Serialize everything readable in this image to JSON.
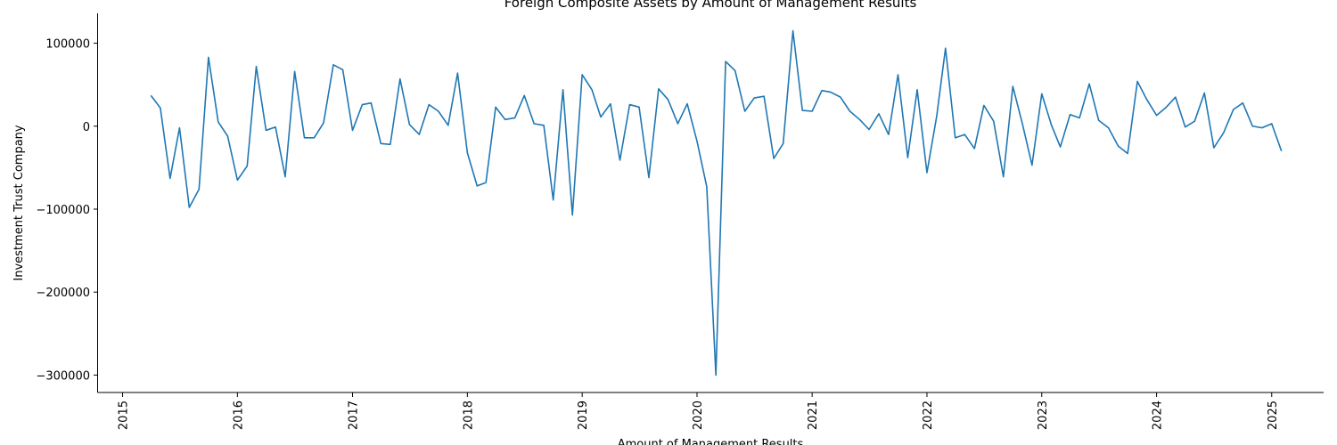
{
  "chart_data": {
    "type": "line",
    "title": "Foreign Composite Assets by Amount of Management Results",
    "xlabel": "Amount of Management Results",
    "ylabel": "Investment Trust Company",
    "x_tick_labels": [
      "2015",
      "2016",
      "2017",
      "2018",
      "2019",
      "2020",
      "2021",
      "2022",
      "2023",
      "2024",
      "2025"
    ],
    "y_tick_labels": [
      "100000",
      "0",
      "−100000",
      "−200000",
      "−300000"
    ],
    "y_ticks": [
      100000,
      0,
      -100000,
      -200000,
      -300000
    ],
    "xlim": [
      "2014-10-15",
      "2025-06-15"
    ],
    "ylim": [
      -321000,
      136000
    ],
    "grid": false,
    "line_color": "#1f77b4",
    "series": [
      {
        "x": [
          "2015-04-01",
          "2015-05-01",
          "2015-06-01",
          "2015-07-01",
          "2015-08-01",
          "2015-09-01",
          "2015-10-01",
          "2015-11-01",
          "2015-12-01",
          "2016-01-01",
          "2016-02-01",
          "2016-03-01",
          "2016-04-01",
          "2016-05-01",
          "2016-06-01",
          "2016-07-01",
          "2016-08-01",
          "2016-09-01",
          "2016-10-01",
          "2016-11-01",
          "2016-12-01",
          "2017-01-01",
          "2017-02-01",
          "2017-03-01",
          "2017-04-01",
          "2017-05-01",
          "2017-06-01",
          "2017-07-01",
          "2017-08-01",
          "2017-09-01",
          "2017-10-01",
          "2017-11-01",
          "2017-12-01",
          "2018-01-01",
          "2018-02-01",
          "2018-03-01",
          "2018-04-01",
          "2018-05-01",
          "2018-06-01",
          "2018-07-01",
          "2018-08-01",
          "2018-09-01",
          "2018-10-01",
          "2018-11-01",
          "2018-12-01",
          "2019-01-01",
          "2019-02-01",
          "2019-03-01",
          "2019-04-01",
          "2019-05-01",
          "2019-06-01",
          "2019-07-01",
          "2019-08-01",
          "2019-09-01",
          "2019-10-01",
          "2019-11-01",
          "2019-12-01",
          "2020-01-01",
          "2020-02-01",
          "2020-03-01",
          "2020-04-01",
          "2020-05-01",
          "2020-06-01",
          "2020-07-01",
          "2020-08-01",
          "2020-09-01",
          "2020-10-01",
          "2020-11-01",
          "2020-12-01",
          "2021-01-01",
          "2021-02-01",
          "2021-03-01",
          "2021-04-01",
          "2021-05-01",
          "2021-06-01",
          "2021-07-01",
          "2021-08-01",
          "2021-09-01",
          "2021-10-01",
          "2021-11-01",
          "2021-12-01",
          "2022-01-01",
          "2022-02-01",
          "2022-03-01",
          "2022-04-01",
          "2022-05-01",
          "2022-06-01",
          "2022-07-01",
          "2022-08-01",
          "2022-09-01",
          "2022-10-01",
          "2022-11-01",
          "2022-12-01",
          "2023-01-01",
          "2023-02-01",
          "2023-03-01",
          "2023-04-01",
          "2023-05-01",
          "2023-06-01",
          "2023-07-01",
          "2023-08-01",
          "2023-09-01",
          "2023-10-01",
          "2023-11-01",
          "2023-12-01",
          "2024-01-01",
          "2024-02-01",
          "2024-03-01",
          "2024-04-01",
          "2024-05-01",
          "2024-06-01",
          "2024-07-01",
          "2024-08-01",
          "2024-09-01",
          "2024-10-01",
          "2024-11-01",
          "2024-12-01",
          "2025-01-01",
          "2025-02-01"
        ],
        "values": [
          37000,
          22000,
          -63000,
          -2000,
          -98000,
          -76000,
          83000,
          5000,
          -12000,
          -65000,
          -48000,
          72000,
          -5000,
          -1000,
          -61000,
          66000,
          -14000,
          -14000,
          4000,
          74000,
          68000,
          -5000,
          26000,
          28000,
          -21000,
          -22000,
          57000,
          2000,
          -10000,
          26000,
          18000,
          1000,
          64000,
          -32000,
          -72000,
          -68000,
          23000,
          8000,
          10000,
          37000,
          3000,
          1000,
          -89000,
          44000,
          -107000,
          62000,
          44000,
          11000,
          27000,
          -41000,
          26000,
          23000,
          -62000,
          45000,
          32000,
          3000,
          27000,
          -18000,
          -73000,
          -300000,
          78000,
          67000,
          18000,
          34000,
          36000,
          -39000,
          -21000,
          115000,
          19000,
          18000,
          43000,
          41000,
          35000,
          18000,
          8000,
          -4000,
          15000,
          -10000,
          62000,
          -38000,
          44000,
          -56000,
          12000,
          94000,
          -14000,
          -10000,
          -27000,
          25000,
          6000,
          -61000,
          48000,
          2000,
          -47000,
          39000,
          1000,
          -25000,
          14000,
          10000,
          51000,
          7000,
          -2000,
          -24000,
          -33000,
          54000,
          32000,
          13000,
          23000,
          35000,
          -1000,
          6000,
          40000,
          -26000,
          -8000,
          20000,
          28000,
          0,
          -2000,
          3000,
          -30000
        ]
      }
    ]
  }
}
